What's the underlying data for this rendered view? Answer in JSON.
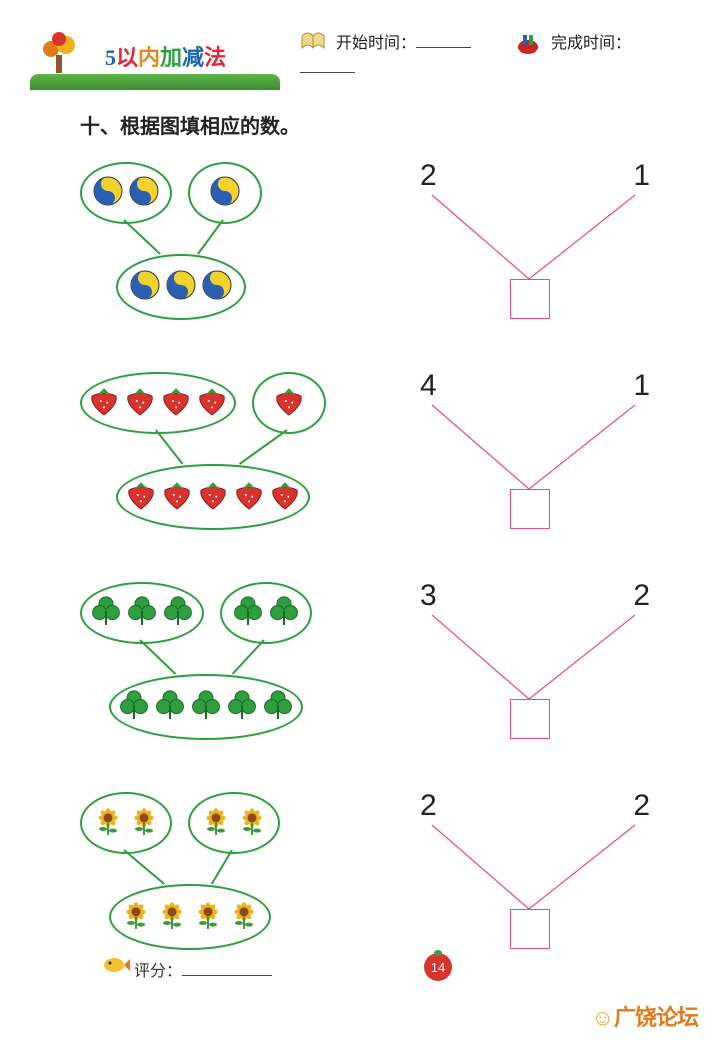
{
  "header": {
    "title_chars": [
      "5",
      "以",
      "内",
      "加",
      "减",
      "法"
    ],
    "start_time_label": "开始时间：",
    "finish_time_label": "完成时间："
  },
  "instruction": "十、根据图填相应的数。",
  "problems": [
    {
      "item_type": "yin-yang-ball",
      "colors": {
        "a": "#2a5fb2",
        "b": "#f2d22e"
      },
      "top_left_count": 2,
      "top_right_count": 1,
      "bottom_count": 3,
      "num_left": "2",
      "num_right": "1"
    },
    {
      "item_type": "strawberry",
      "colors": {
        "body": "#d8342e",
        "leaf": "#3a9e3e",
        "seed": "#fff"
      },
      "top_left_count": 4,
      "top_right_count": 1,
      "bottom_count": 5,
      "num_left": "4",
      "num_right": "1"
    },
    {
      "item_type": "clover",
      "colors": {
        "leaf": "#2e9e3e",
        "outline": "#1b6b28"
      },
      "top_left_count": 3,
      "top_right_count": 2,
      "bottom_count": 5,
      "num_left": "3",
      "num_right": "2"
    },
    {
      "item_type": "sunflower",
      "colors": {
        "petal": "#f0b21b",
        "center": "#8a4a1b",
        "leaf": "#3a9e3e"
      },
      "top_left_count": 2,
      "top_right_count": 2,
      "bottom_count": 4,
      "num_left": "2",
      "num_right": "2"
    }
  ],
  "footer": {
    "score_label": "评分：",
    "page_number": "14"
  },
  "watermark": "广饶论坛",
  "style": {
    "oval_border_color": "#2e9e3e",
    "answer_box_color": "#e84b8a",
    "v_line_color": "#e84b8a",
    "icon_size": 32
  }
}
